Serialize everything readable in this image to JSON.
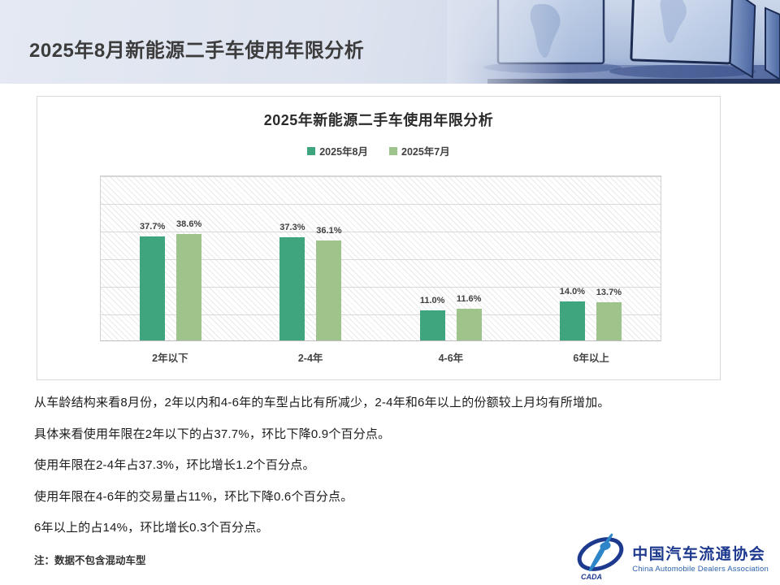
{
  "header": {
    "title": "2025年8月新能源二手车使用年限分析"
  },
  "chart_data": {
    "type": "bar",
    "title": "2025年新能源二手车使用年限分析",
    "categories": [
      "2年以下",
      "2-4年",
      "4-6年",
      "6年以上"
    ],
    "series": [
      {
        "name": "2025年8月",
        "color": "#3FA57F",
        "values": [
          37.7,
          37.3,
          11.0,
          14.0
        ]
      },
      {
        "name": "2025年7月",
        "color": "#9EC38B",
        "values": [
          38.6,
          36.1,
          11.6,
          13.7
        ]
      }
    ],
    "value_suffix": "%",
    "ylim": [
      0,
      60
    ],
    "gridline_step": 10,
    "grid": true,
    "legend_position": "top",
    "plot_background": "diagonal-hatch"
  },
  "analysis": {
    "paragraphs": [
      "从车龄结构来看8月份，2年以内和4-6年的车型占比有所减少，2-4年和6年以上的份额较上月均有所增加。",
      "具体来看使用年限在2年以下的占37.7%，环比下降0.9个百分点。",
      "使用年限在2-4年占37.3%，环比增长1.2个百分点。",
      "使用年限在4-6年的交易量占11%，环比下降0.6个百分点。",
      "6年以上的占14%，环比增长0.3个百分点。"
    ],
    "note": "注：数据不包含混动车型"
  },
  "footer": {
    "logo_cn": "中国汽车流通协会",
    "logo_en": "China Automobile Dealers Association",
    "logo_badge": "CADA",
    "brand_blue": "#1e3a8f",
    "brand_light_blue": "#2e86c9"
  }
}
